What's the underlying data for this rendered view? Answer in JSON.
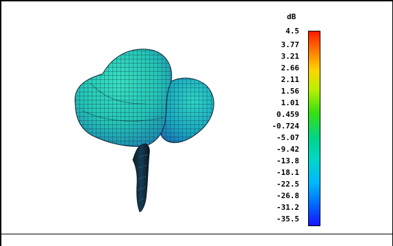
{
  "legend": {
    "unit": "dB",
    "ticks": [
      "4.5",
      "3.77",
      "3.21",
      "2.66",
      "2.11",
      "1.56",
      "1.01",
      "0.459",
      "-0.724",
      "-5.07",
      "-9.42",
      "-13.8",
      "-18.1",
      "-22.5",
      "-26.8",
      "-31.2",
      "-35.5"
    ],
    "colors": {
      "top": "#ff1a00",
      "bottom": "#1a12ff"
    }
  },
  "plot": {
    "surface_color": "#2ecfb8",
    "shadow_color": "#1c6fae",
    "mesh_color": "#0a2230"
  }
}
